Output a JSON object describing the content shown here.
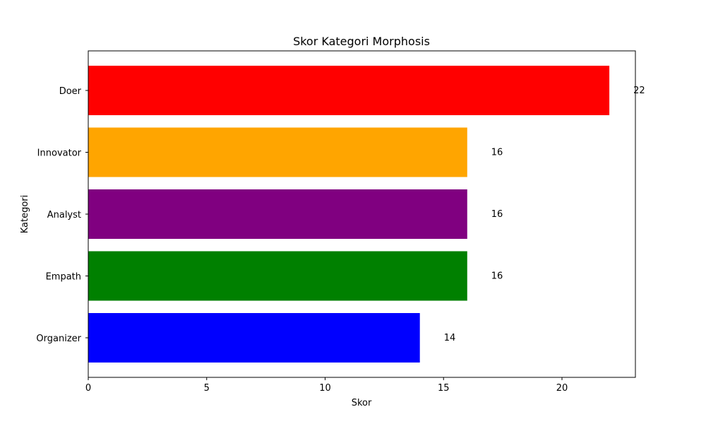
{
  "chart_data": {
    "type": "bar",
    "orientation": "horizontal",
    "title": "Skor Kategori Morphosis",
    "xlabel": "Skor",
    "ylabel": "Kategori",
    "categories": [
      "Organizer",
      "Empath",
      "Analyst",
      "Innovator",
      "Doer"
    ],
    "values": [
      14,
      16,
      16,
      16,
      22
    ],
    "colors": [
      "#0000ff",
      "#008000",
      "#800080",
      "#ffa500",
      "#ff0000"
    ],
    "data_labels": [
      "14",
      "16",
      "16",
      "16",
      "22"
    ],
    "xlim": [
      0,
      23.1
    ],
    "x_ticks": [
      0,
      5,
      10,
      15,
      20
    ],
    "x_tick_labels": [
      "0",
      "5",
      "10",
      "15",
      "20"
    ],
    "grid": false,
    "legend": "none"
  }
}
